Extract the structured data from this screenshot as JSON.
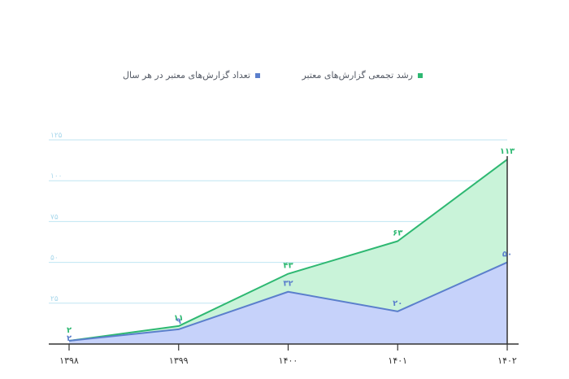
{
  "chart_data": {
    "type": "area",
    "categories": [
      "۱۳۹۸",
      "۱۳۹۹",
      "۱۴۰۰",
      "۱۴۰۱",
      "۱۴۰۲"
    ],
    "series": [
      {
        "name": "رشد تجمعی گزارش‌های معتبر",
        "color": "#2eb872",
        "fill": "#c9f3d9",
        "values": [
          2,
          11,
          43,
          63,
          113
        ],
        "labels": [
          "۲",
          "۱۱",
          "۴۳",
          "۶۳",
          "۱۱۳"
        ]
      },
      {
        "name": "تعداد گزارش‌های معتبر در هر سال",
        "color": "#5b7fcc",
        "fill": "#c6d2fa",
        "values": [
          2,
          9,
          32,
          20,
          50
        ],
        "labels": [
          "۲",
          "۹",
          "۳۲",
          "۲۰",
          "۵۰"
        ]
      }
    ],
    "yticks": [
      25,
      50,
      75,
      100,
      125
    ],
    "ytick_labels": [
      "۲۵",
      "۵۰",
      "۷۵",
      "۱۰۰",
      "۱۲۵"
    ],
    "ylim": [
      0,
      125
    ],
    "grid": true,
    "legend_position": "top-center",
    "title": "",
    "xlabel": "",
    "ylabel": ""
  }
}
